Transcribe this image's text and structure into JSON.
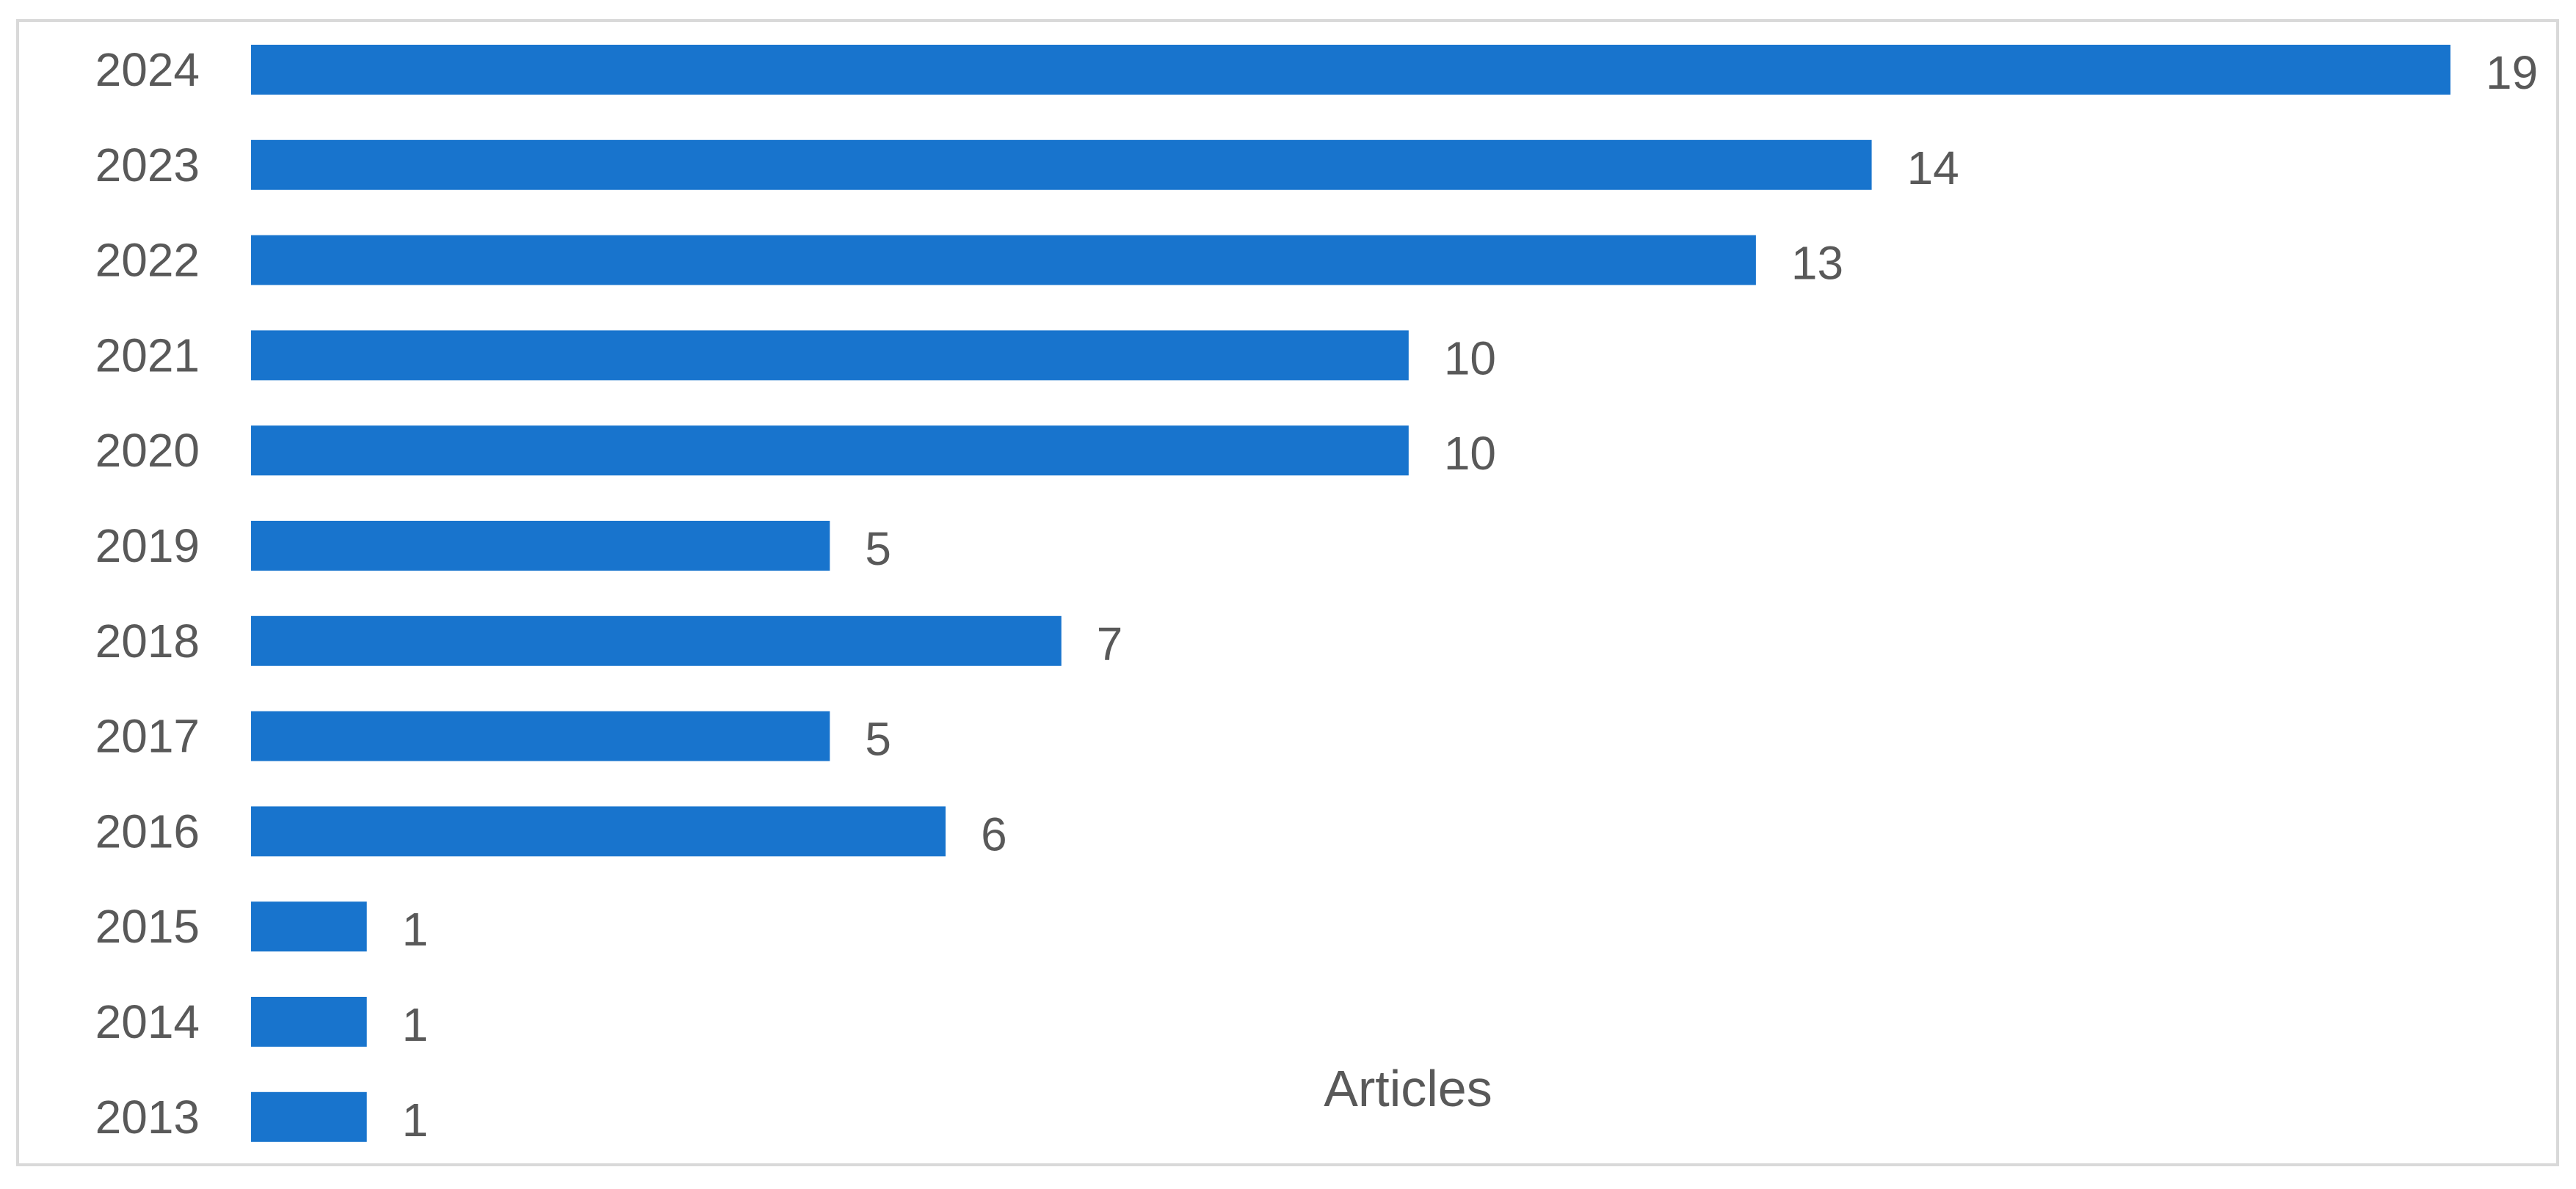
{
  "chart_data": {
    "type": "bar",
    "orientation": "horizontal",
    "categories": [
      "2024",
      "2023",
      "2022",
      "2021",
      "2020",
      "2019",
      "2018",
      "2017",
      "2016",
      "2015",
      "2014",
      "2013"
    ],
    "series": [
      {
        "name": "Articles",
        "values": [
          19,
          14,
          13,
          10,
          10,
          5,
          7,
          5,
          6,
          1,
          1,
          1
        ]
      }
    ],
    "xlim": [
      0,
      19
    ],
    "grid": false,
    "data_labels": true,
    "legend_position": "bottom",
    "colors": {
      "bar": "#1874CD",
      "text": "#595959",
      "border": "#D9D9D9"
    }
  }
}
